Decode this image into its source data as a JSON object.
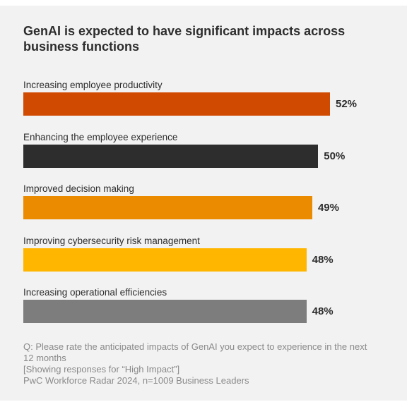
{
  "chart_data": {
    "type": "bar",
    "orientation": "horizontal",
    "title": "GenAI is expected to have significant impacts across business functions",
    "categories": [
      "Increasing employee productivity",
      "Enhancing the employee experience",
      "Improved decision making",
      "Improving cybersecurity risk management",
      "Increasing operational efficiencies"
    ],
    "values": [
      52,
      50,
      49,
      48,
      48
    ],
    "value_labels": [
      "52%",
      "50%",
      "49%",
      "48%",
      "48%"
    ],
    "colors": [
      "#d04a02",
      "#2d2d2d",
      "#eb8c00",
      "#ffb600",
      "#7d7d7d"
    ],
    "unit": "%",
    "grid": false,
    "legend": "none"
  },
  "footnote": {
    "question": "Q: Please rate the anticipated impacts of GenAI you expect to experience in the next 12 months",
    "note": "[Showing responses for “High Impact”]",
    "source": "PwC Workforce Radar 2024, n=1009 Business Leaders"
  }
}
